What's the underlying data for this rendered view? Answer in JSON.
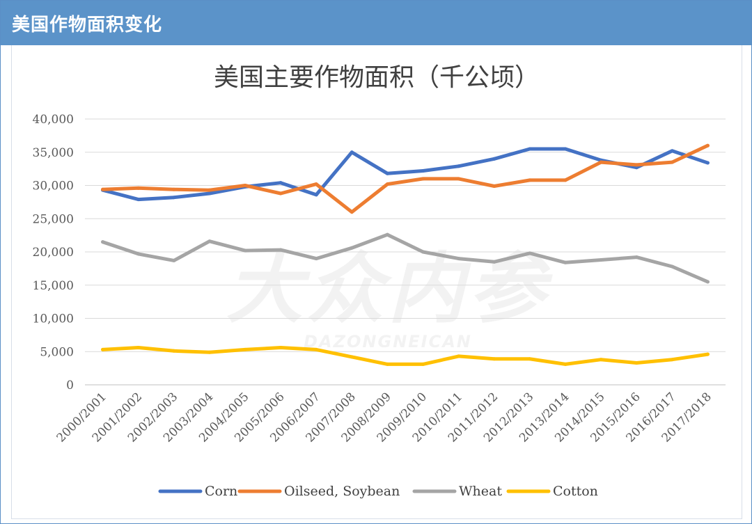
{
  "header": {
    "title": "美国作物面积变化"
  },
  "watermark": {
    "main": "大众内参",
    "sub": "DAZONGNEICAN"
  },
  "chart_data": {
    "type": "line",
    "title": "美国主要作物面积（千公顷）",
    "xlabel": "",
    "ylabel": "",
    "ylim": [
      0,
      40000
    ],
    "yticks": [
      0,
      5000,
      10000,
      15000,
      20000,
      25000,
      30000,
      35000,
      40000
    ],
    "ytick_labels": [
      "0",
      "5,000",
      "10,000",
      "15,000",
      "20,000",
      "25,000",
      "30,000",
      "35,000",
      "40,000"
    ],
    "grid": true,
    "legend_position": "bottom",
    "categories": [
      "2000/2001",
      "2001/2002",
      "2002/2003",
      "2003/2004",
      "2004/2005",
      "2005/2006",
      "2006/2007",
      "2007/2008",
      "2008/2009",
      "2009/2010",
      "2010/2011",
      "2011/2012",
      "2012/2013",
      "2013/2014",
      "2014/2015",
      "2015/2016",
      "2016/2017",
      "2017/2018"
    ],
    "series": [
      {
        "name": "Corn",
        "color": "#4472c4",
        "values": [
          29300,
          27900,
          28200,
          28800,
          29800,
          30400,
          28600,
          35000,
          31800,
          32200,
          32900,
          34000,
          35500,
          35500,
          33800,
          32700,
          35200,
          33400
        ]
      },
      {
        "name": "Oilseed, Soybean",
        "color": "#ed7d31",
        "values": [
          29400,
          29600,
          29400,
          29300,
          30000,
          28800,
          30200,
          26000,
          30200,
          31000,
          31000,
          29900,
          30800,
          30800,
          33500,
          33100,
          33500,
          36000
        ]
      },
      {
        "name": "Wheat",
        "color": "#a5a5a5",
        "values": [
          21500,
          19700,
          18700,
          21600,
          20200,
          20300,
          19000,
          20600,
          22600,
          20000,
          19000,
          18500,
          19800,
          18400,
          18800,
          19200,
          17800,
          15500
        ]
      },
      {
        "name": "Cotton",
        "color": "#ffc000",
        "values": [
          5300,
          5600,
          5100,
          4900,
          5300,
          5600,
          5300,
          4200,
          3100,
          3100,
          4300,
          3900,
          3900,
          3100,
          3800,
          3300,
          3800,
          4600
        ]
      }
    ]
  }
}
